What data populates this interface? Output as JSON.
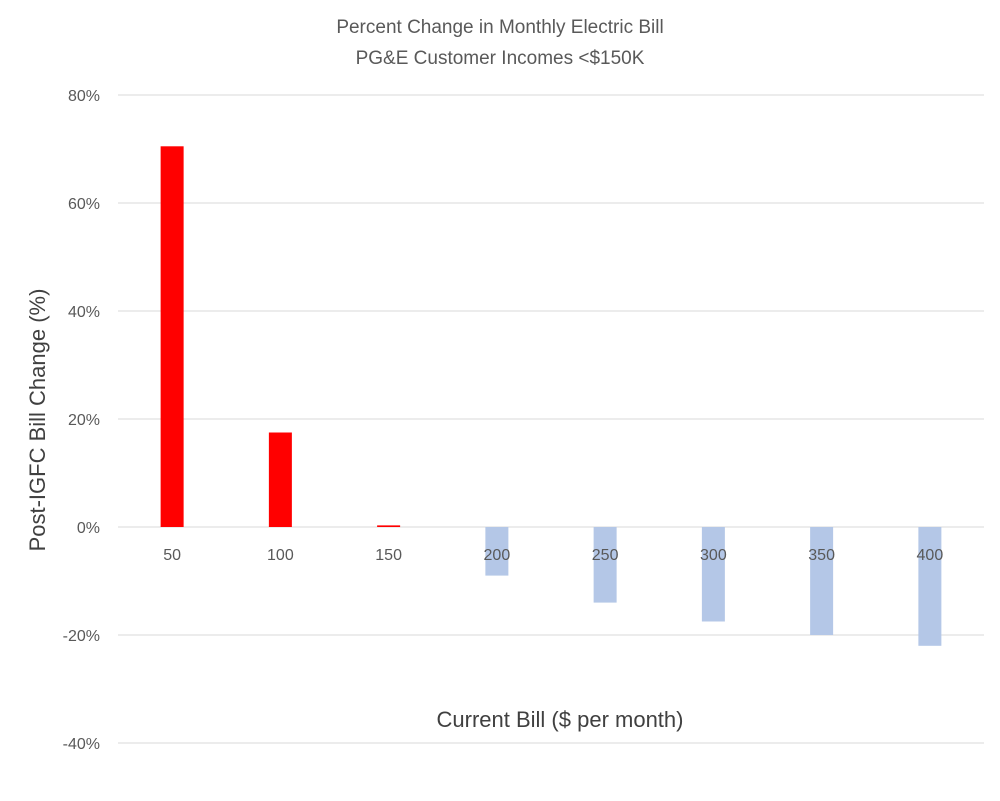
{
  "chart_data": {
    "type": "bar",
    "title": "Percent Change in Monthly Electric Bill",
    "subtitle": "PG&E Customer Incomes <$150K",
    "xlabel": "Current Bill ($ per month)",
    "ylabel": "Post-IGFC Bill Change (%)",
    "categories": [
      "50",
      "100",
      "150",
      "200",
      "250",
      "300",
      "350",
      "400"
    ],
    "values": [
      70.5,
      17.5,
      0.3,
      -9,
      -14,
      -17.5,
      -20,
      -22
    ],
    "ylim": [
      -40,
      80
    ],
    "yticks": [
      80,
      60,
      40,
      20,
      0,
      -20,
      -40
    ],
    "ytick_labels": [
      "80%",
      "60%",
      "40%",
      "20%",
      "0%",
      "-20%",
      "-40%"
    ],
    "grid": true,
    "legend": "none",
    "colors": {
      "positive": "#ff0000",
      "negative": "#b4c7e7"
    }
  }
}
